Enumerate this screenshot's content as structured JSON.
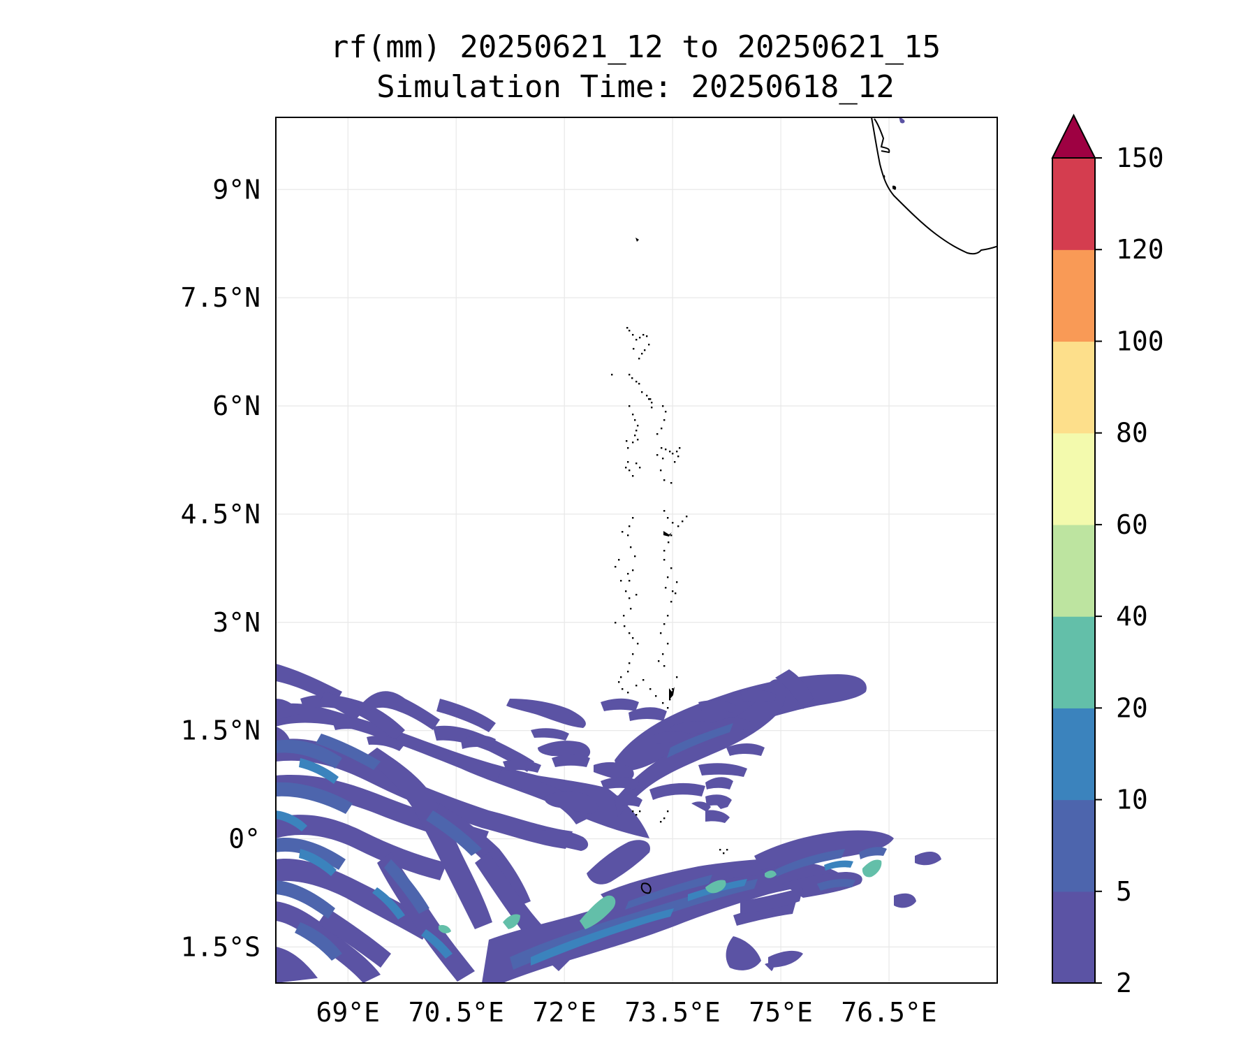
{
  "title": {
    "line1": "rf(mm) 20250621_12 to 20250621_15",
    "line2": "Simulation Time: 20250618_12"
  },
  "map": {
    "lon_range": [
      68.0,
      78.0
    ],
    "lat_range": [
      -2.0,
      10.0
    ],
    "gridlines": true,
    "lon_ticks": [
      {
        "value": 69.0,
        "label": "69°E"
      },
      {
        "value": 70.5,
        "label": "70.5°E"
      },
      {
        "value": 72.0,
        "label": "72°E"
      },
      {
        "value": 73.5,
        "label": "73.5°E"
      },
      {
        "value": 75.0,
        "label": "75°E"
      },
      {
        "value": 76.5,
        "label": "76.5°E"
      }
    ],
    "lat_ticks": [
      {
        "value": 9.0,
        "label": "9°N"
      },
      {
        "value": 7.5,
        "label": "7.5°N"
      },
      {
        "value": 6.0,
        "label": "6°N"
      },
      {
        "value": 4.5,
        "label": "4.5°N"
      },
      {
        "value": 3.0,
        "label": "3°N"
      },
      {
        "value": 1.5,
        "label": "1.5°N"
      },
      {
        "value": 0.0,
        "label": "0°"
      },
      {
        "value": -1.5,
        "label": "1.5°S"
      }
    ],
    "coastline_color": "#000000"
  },
  "colorbar": {
    "levels": [
      "2",
      "5",
      "10",
      "20",
      "40",
      "60",
      "80",
      "100",
      "120",
      "150"
    ],
    "colors": [
      "#5b53a4",
      "#4d65ad",
      "#3b83bd",
      "#63bfa9",
      "#bde4a0",
      "#f3faad",
      "#fddf8b",
      "#f99a56",
      "#d43d4f"
    ],
    "extend_color": "#9e0142",
    "extend": "max"
  }
}
